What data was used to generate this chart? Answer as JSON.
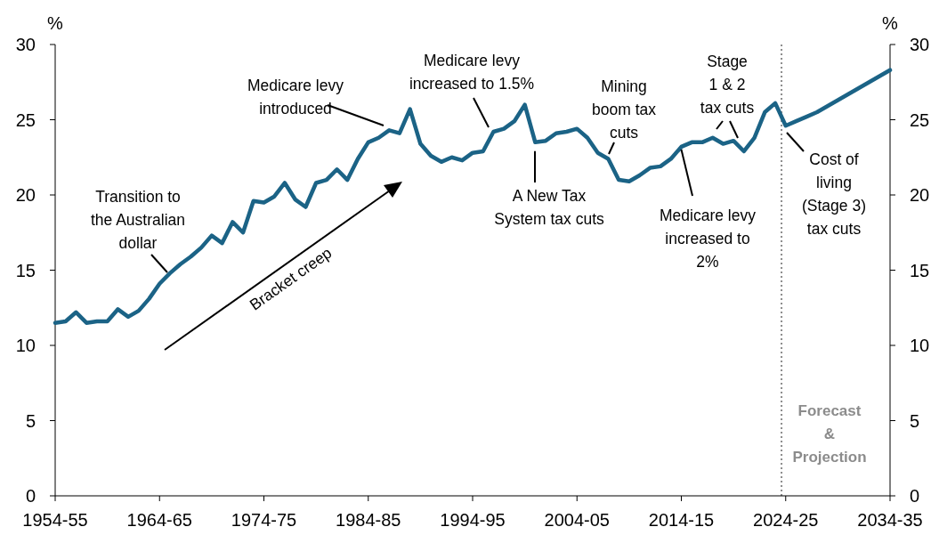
{
  "chart_data": {
    "type": "line",
    "ylabel": "%",
    "y2label": "%",
    "categories": [
      "1954-55",
      null,
      null,
      null,
      null,
      null,
      null,
      null,
      null,
      null,
      "1964-65",
      null,
      null,
      null,
      null,
      null,
      null,
      null,
      null,
      null,
      "1974-75",
      null,
      null,
      null,
      null,
      null,
      null,
      null,
      null,
      null,
      "1984-85",
      null,
      null,
      null,
      null,
      null,
      null,
      null,
      null,
      null,
      "1994-95",
      null,
      null,
      null,
      null,
      null,
      null,
      null,
      null,
      null,
      "2004-05",
      null,
      null,
      null,
      null,
      null,
      null,
      null,
      null,
      null,
      "2014-15",
      null,
      null,
      null,
      null,
      null,
      null,
      null,
      null,
      null,
      "2024-25",
      null,
      null,
      null,
      null,
      null,
      null,
      null,
      null,
      null,
      "2034-35"
    ],
    "series": [
      {
        "color": "#1b6386",
        "values": [
          11.5,
          11.6,
          12.2,
          11.5,
          11.6,
          11.6,
          12.4,
          11.9,
          12.3,
          13.1,
          14.1,
          14.8,
          15.4,
          15.9,
          16.5,
          17.3,
          16.8,
          18.2,
          17.5,
          19.6,
          19.5,
          19.9,
          20.8,
          19.7,
          19.2,
          20.8,
          21.0,
          21.7,
          21.0,
          22.4,
          23.5,
          23.8,
          24.3,
          24.1,
          25.7,
          23.4,
          22.6,
          22.2,
          22.5,
          22.3,
          22.8,
          22.9,
          24.2,
          24.4,
          24.9,
          26.0,
          23.5,
          23.6,
          24.1,
          24.2,
          24.4,
          23.8,
          22.8,
          22.4,
          21.0,
          20.9,
          21.3,
          21.8,
          21.9,
          22.4,
          23.2,
          23.5,
          23.5,
          23.8,
          23.4,
          23.6,
          22.9,
          23.8,
          25.5,
          26.1,
          24.6,
          24.9,
          25.2,
          25.5,
          25.9,
          26.3,
          26.7,
          27.1,
          27.5,
          27.9,
          28.3
        ]
      }
    ],
    "ylim": [
      0,
      30
    ],
    "yticks": [
      0,
      5,
      10,
      15,
      20,
      25,
      30
    ],
    "y2lim": [
      0,
      30
    ],
    "y2ticks": [
      0,
      5,
      10,
      15,
      20,
      25,
      30
    ],
    "grid": false,
    "marker": "none",
    "line_style": "solid",
    "annotations": [
      "Transition to\nthe Australian\ndollar",
      "Medicare levy\nintroduced",
      "Medicare levy\nincreased to 1.5%",
      {
        "text": "A New Tax\nSystem tax cuts",
        "y": 23.5
      },
      "Mining\nboom tax\ncuts",
      {
        "text": "Medicare levy\nincreased to\n2%",
        "x": "2014-15",
        "y": 23.2
      },
      "Stage\n1 & 2\ntax cuts",
      "Cost of\nliving\n(Stage 3)\ntax cuts",
      "Bracket creep",
      "Forecast\n&\nProjection"
    ]
  }
}
